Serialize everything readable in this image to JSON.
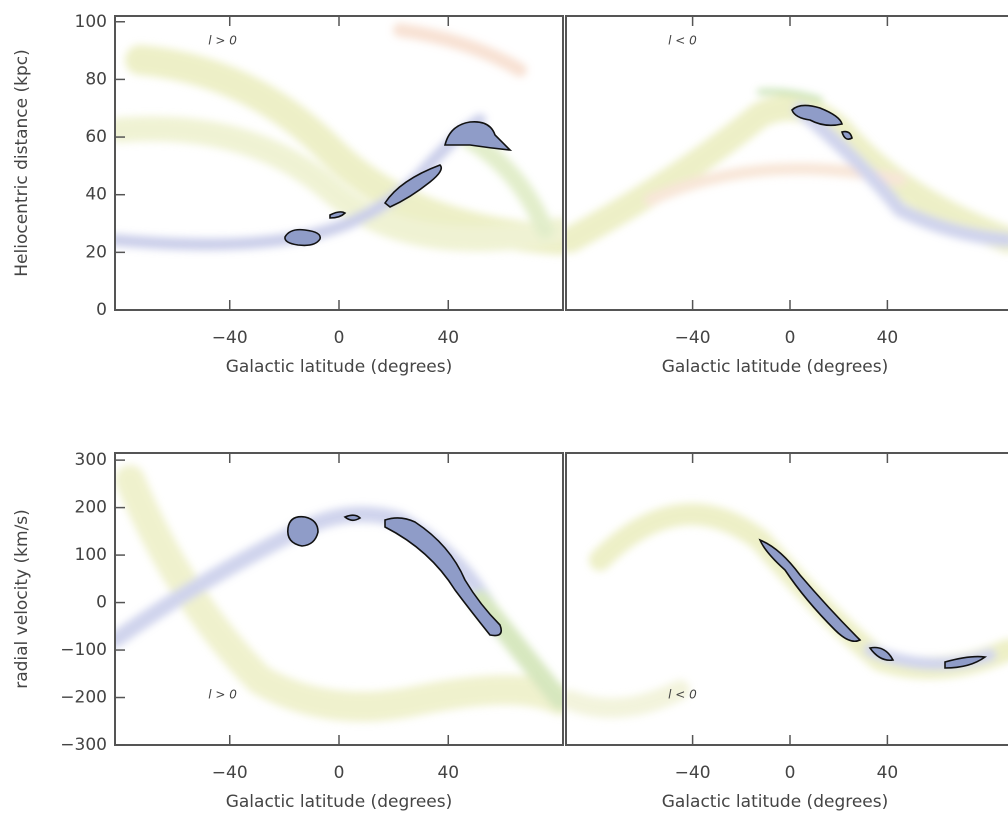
{
  "chart_data": [
    {
      "type": "scatter",
      "annotation": "l > 0",
      "x_label": "Galactic latitude (degrees)",
      "y_label": "Heliocentric distance (kpc)",
      "xlim": [
        -82,
        82
      ],
      "ylim": [
        0,
        102
      ],
      "xticks": [
        {
          "value": -40,
          "label": "−40"
        },
        0,
        40
      ],
      "yticks": [
        0,
        20,
        40,
        60,
        80,
        100
      ]
    },
    {
      "type": "scatter",
      "annotation": "l < 0",
      "x_label": "Galactic latitude (degrees)",
      "xlim": [
        -92,
        92
      ],
      "ylim": [
        0,
        102
      ],
      "xticks": [
        {
          "value": -40,
          "label": "−40"
        },
        0,
        40
      ]
    },
    {
      "type": "scatter",
      "annotation": "l > 0",
      "x_label": "Galactic latitude (degrees)",
      "y_label": "radial velocity (km/s)",
      "xlim": [
        -82,
        82
      ],
      "ylim": [
        -300,
        315
      ],
      "xticks": [
        {
          "value": -40,
          "label": "−40"
        },
        0,
        40
      ],
      "yticks": [
        {
          "value": -300,
          "label": "−300"
        },
        {
          "value": -200,
          "label": "−200"
        },
        {
          "value": -100,
          "label": "−100"
        },
        0,
        100,
        200,
        300
      ]
    },
    {
      "type": "scatter",
      "annotation": "l < 0",
      "x_label": "Galactic latitude (degrees)",
      "xlim": [
        -92,
        92
      ],
      "ylim": [
        -300,
        315
      ],
      "xticks": [
        {
          "value": -40,
          "label": "−40"
        },
        0,
        40
      ]
    }
  ]
}
